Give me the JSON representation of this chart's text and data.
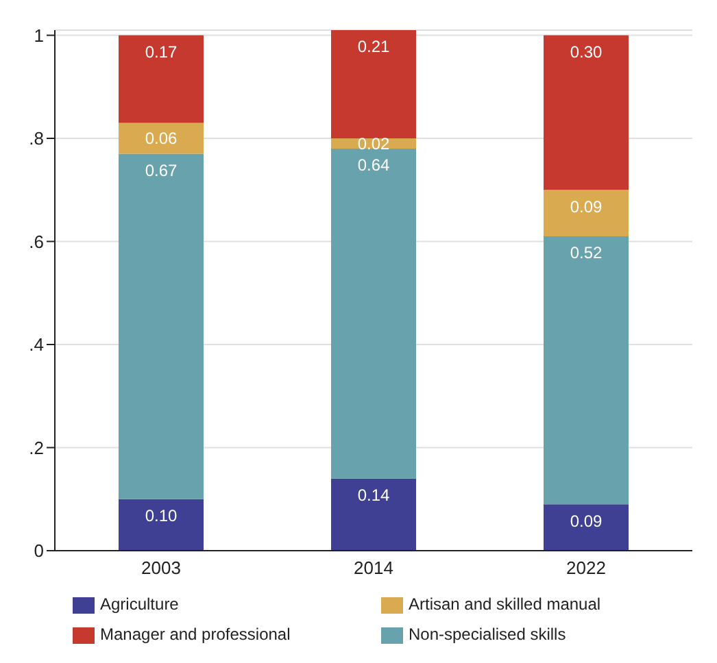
{
  "chart_data": {
    "type": "bar",
    "stacked": true,
    "categories": [
      "2003",
      "2014",
      "2022"
    ],
    "series": [
      {
        "name": "Agriculture",
        "color": "#3f3f94",
        "values": [
          0.1,
          0.14,
          0.09
        ],
        "value_labels": [
          "0.10",
          "0.14",
          "0.09"
        ]
      },
      {
        "name": "Non-specialised skills",
        "color": "#68a2ad",
        "values": [
          0.67,
          0.64,
          0.52
        ],
        "value_labels": [
          "0.67",
          "0.64",
          "0.52"
        ]
      },
      {
        "name": "Artisan and skilled manual",
        "color": "#d9aa4f",
        "values": [
          0.06,
          0.02,
          0.09
        ],
        "value_labels": [
          "0.06",
          "0.02",
          "0.09"
        ]
      },
      {
        "name": "Manager and professional",
        "color": "#c6392f",
        "values": [
          0.17,
          0.21,
          0.3
        ],
        "value_labels": [
          "0.17",
          "0.21",
          "0.30"
        ]
      }
    ],
    "ylim": [
      0,
      1.01
    ],
    "yticks": [
      0,
      {
        "value": 0.2,
        "label": ".2"
      },
      {
        "value": 0.4,
        "label": ".4"
      },
      {
        "value": 0.6,
        "label": ".6"
      },
      {
        "value": 0.8,
        "label": ".8"
      },
      1
    ],
    "grid": "y",
    "legend": "bottom"
  }
}
